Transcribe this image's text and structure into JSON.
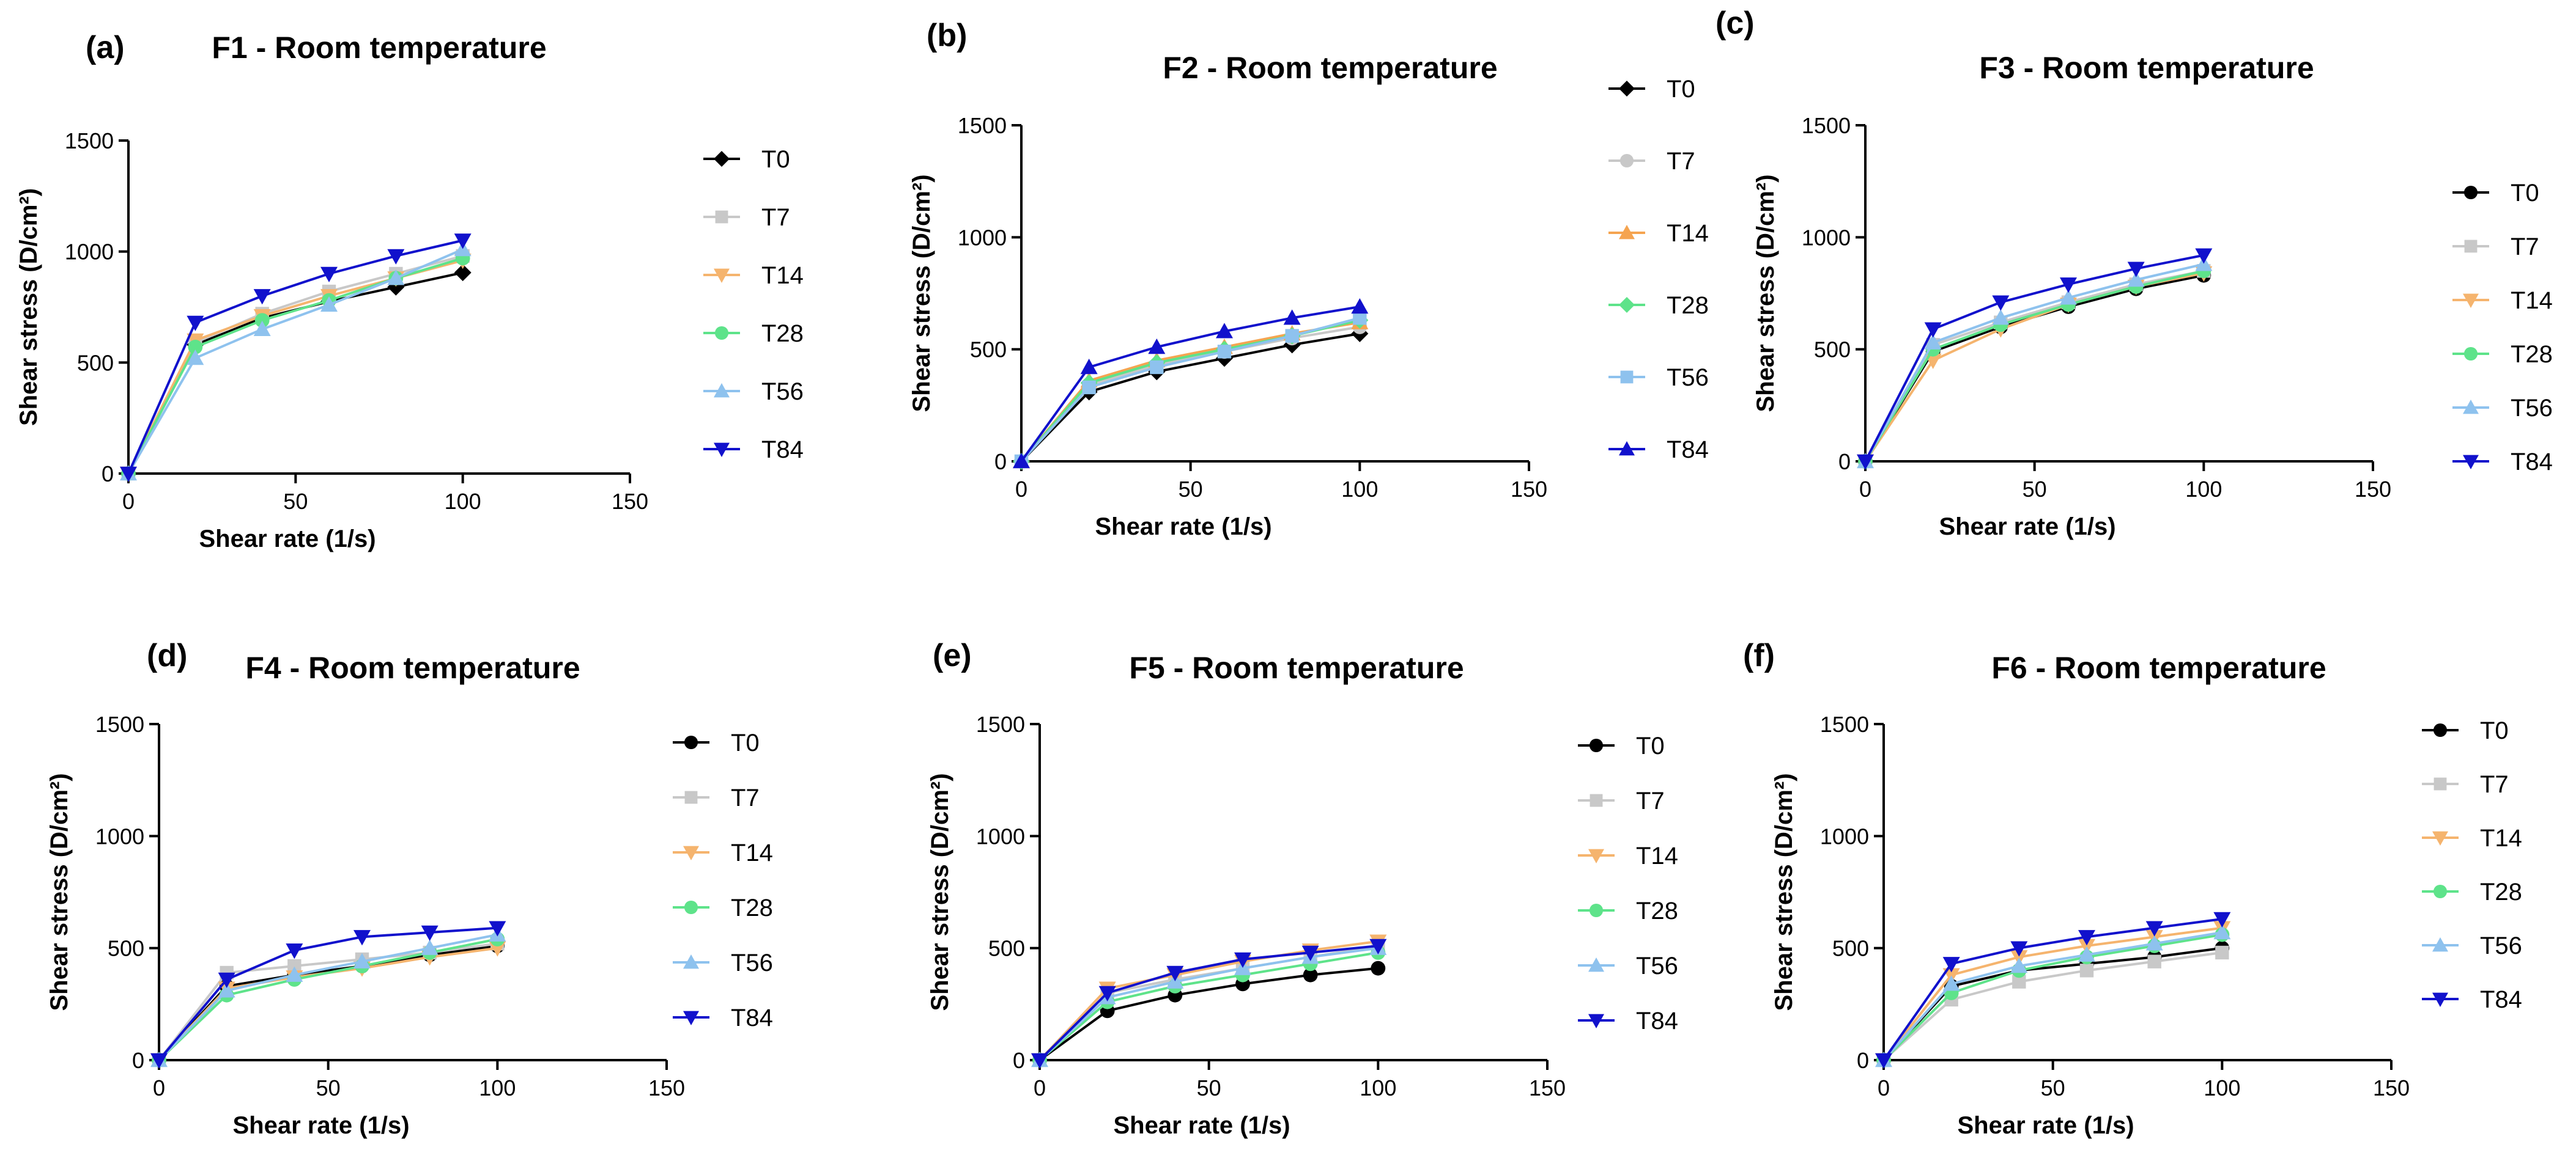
{
  "chart_data": [
    {
      "type": "line",
      "panel_label": "(a)",
      "title": "F1 -  Room temperature",
      "xlabel": "Shear rate (1/s)",
      "ylabel": "Shear stress (D/cm²)",
      "xlim": [
        0,
        150
      ],
      "ylim": [
        0,
        1500
      ],
      "xticks": [
        0,
        50,
        100,
        150
      ],
      "yticks": [
        0,
        500,
        1000,
        1500
      ],
      "x": [
        0,
        20,
        40,
        60,
        80,
        100
      ],
      "series": [
        {
          "name": "T0",
          "color": "#000000",
          "marker": "diamond",
          "values": [
            0,
            580,
            700,
            775,
            840,
            905
          ]
        },
        {
          "name": "T7",
          "color": "#c8c8c8",
          "marker": "square",
          "values": [
            0,
            590,
            720,
            820,
            900,
            980
          ]
        },
        {
          "name": "T14",
          "color": "#f5b46e",
          "marker": "tri-down",
          "values": [
            0,
            600,
            710,
            800,
            880,
            960
          ]
        },
        {
          "name": "T28",
          "color": "#5ee38a",
          "marker": "circle",
          "values": [
            0,
            570,
            690,
            780,
            880,
            970
          ]
        },
        {
          "name": "T56",
          "color": "#8ec2ee",
          "marker": "tri-up",
          "values": [
            0,
            520,
            650,
            760,
            880,
            1010
          ]
        },
        {
          "name": "T84",
          "color": "#1111cc",
          "marker": "tri-down",
          "values": [
            0,
            680,
            800,
            900,
            980,
            1050
          ]
        }
      ]
    },
    {
      "type": "line",
      "panel_label": "(b)",
      "title": "F2 - Room temperature",
      "xlabel": "Shear rate (1/s)",
      "ylabel": "Shear stress (D/cm²)",
      "xlim": [
        0,
        150
      ],
      "ylim": [
        0,
        1500
      ],
      "xticks": [
        0,
        50,
        100,
        150
      ],
      "yticks": [
        0,
        500,
        1000,
        1500
      ],
      "x": [
        0,
        20,
        40,
        60,
        80,
        100
      ],
      "series": [
        {
          "name": "T0",
          "color": "#000000",
          "marker": "diamond",
          "values": [
            0,
            310,
            400,
            460,
            520,
            570
          ]
        },
        {
          "name": "T7",
          "color": "#c8c8c8",
          "marker": "circle",
          "values": [
            0,
            340,
            430,
            490,
            550,
            600
          ]
        },
        {
          "name": "T14",
          "color": "#f5a450",
          "marker": "tri-up",
          "values": [
            0,
            360,
            450,
            510,
            570,
            620
          ]
        },
        {
          "name": "T28",
          "color": "#5ee38a",
          "marker": "diamond",
          "values": [
            0,
            350,
            440,
            500,
            560,
            630
          ]
        },
        {
          "name": "T56",
          "color": "#8ec2ee",
          "marker": "square",
          "values": [
            0,
            330,
            420,
            490,
            560,
            640
          ]
        },
        {
          "name": "T84",
          "color": "#1111cc",
          "marker": "tri-up",
          "values": [
            0,
            420,
            510,
            580,
            640,
            690
          ]
        }
      ]
    },
    {
      "type": "line",
      "panel_label": "(c)",
      "title": "F3 - Room temperature",
      "xlabel": "Shear rate (1/s)",
      "ylabel": "Shear stress (D/cm²)",
      "xlim": [
        0,
        150
      ],
      "ylim": [
        0,
        1500
      ],
      "xticks": [
        0,
        50,
        100,
        150
      ],
      "yticks": [
        0,
        500,
        1000,
        1500
      ],
      "x": [
        0,
        20,
        40,
        60,
        80,
        100
      ],
      "series": [
        {
          "name": "T0",
          "color": "#000000",
          "marker": "circle",
          "values": [
            0,
            490,
            600,
            690,
            770,
            830
          ]
        },
        {
          "name": "T7",
          "color": "#c8c8c8",
          "marker": "square",
          "values": [
            0,
            520,
            620,
            710,
            790,
            850
          ]
        },
        {
          "name": "T14",
          "color": "#f5b46e",
          "marker": "tri-down",
          "values": [
            0,
            450,
            590,
            700,
            780,
            840
          ]
        },
        {
          "name": "T28",
          "color": "#5ee38a",
          "marker": "circle",
          "values": [
            0,
            500,
            610,
            700,
            780,
            850
          ]
        },
        {
          "name": "T56",
          "color": "#8ec2ee",
          "marker": "tri-up",
          "values": [
            0,
            530,
            640,
            730,
            810,
            880
          ]
        },
        {
          "name": "T84",
          "color": "#1111cc",
          "marker": "tri-down",
          "values": [
            0,
            590,
            710,
            790,
            860,
            920
          ]
        }
      ]
    },
    {
      "type": "line",
      "panel_label": "(d)",
      "title": "F4 - Room temperature",
      "xlabel": "Shear rate (1/s)",
      "ylabel": "Shear stress (D/cm²)",
      "xlim": [
        0,
        150
      ],
      "ylim": [
        0,
        1500
      ],
      "xticks": [
        0,
        50,
        100,
        150
      ],
      "yticks": [
        0,
        500,
        1000,
        1500
      ],
      "x": [
        0,
        20,
        40,
        60,
        80,
        100
      ],
      "series": [
        {
          "name": "T0",
          "color": "#000000",
          "marker": "circle",
          "values": [
            0,
            330,
            380,
            420,
            470,
            510
          ]
        },
        {
          "name": "T7",
          "color": "#c8c8c8",
          "marker": "square",
          "values": [
            0,
            390,
            420,
            450,
            480,
            520
          ]
        },
        {
          "name": "T14",
          "color": "#f5b46e",
          "marker": "tri-down",
          "values": [
            0,
            320,
            370,
            410,
            460,
            500
          ]
        },
        {
          "name": "T28",
          "color": "#5ee38a",
          "marker": "circle",
          "values": [
            0,
            290,
            360,
            420,
            480,
            540
          ]
        },
        {
          "name": "T56",
          "color": "#8ec2ee",
          "marker": "tri-up",
          "values": [
            0,
            310,
            380,
            440,
            500,
            560
          ]
        },
        {
          "name": "T84",
          "color": "#1111cc",
          "marker": "tri-down",
          "values": [
            0,
            360,
            490,
            550,
            570,
            590
          ]
        }
      ]
    },
    {
      "type": "line",
      "panel_label": "(e)",
      "title": "F5 -  Room temperature",
      "xlabel": "Shear rate (1/s)",
      "ylabel": "Shear stress (D/cm²)",
      "xlim": [
        0,
        150
      ],
      "ylim": [
        0,
        1500
      ],
      "xticks": [
        0,
        50,
        100,
        150
      ],
      "yticks": [
        0,
        500,
        1000,
        1500
      ],
      "x": [
        0,
        20,
        40,
        60,
        80,
        100
      ],
      "series": [
        {
          "name": "T0",
          "color": "#000000",
          "marker": "circle",
          "values": [
            0,
            220,
            290,
            340,
            380,
            410
          ]
        },
        {
          "name": "T7",
          "color": "#c8c8c8",
          "marker": "square",
          "values": [
            0,
            300,
            360,
            410,
            460,
            510
          ]
        },
        {
          "name": "T14",
          "color": "#f5b46e",
          "marker": "tri-down",
          "values": [
            0,
            320,
            380,
            440,
            490,
            530
          ]
        },
        {
          "name": "T28",
          "color": "#5ee38a",
          "marker": "circle",
          "values": [
            0,
            260,
            330,
            380,
            430,
            480
          ]
        },
        {
          "name": "T56",
          "color": "#8ec2ee",
          "marker": "tri-up",
          "values": [
            0,
            280,
            350,
            410,
            460,
            500
          ]
        },
        {
          "name": "T84",
          "color": "#1111cc",
          "marker": "tri-down",
          "values": [
            0,
            300,
            390,
            450,
            480,
            510
          ]
        }
      ]
    },
    {
      "type": "line",
      "panel_label": "(f)",
      "title": "F6 - Room temperature",
      "xlabel": "Shear rate (1/s)",
      "ylabel": "Shear stress (D/cm²)",
      "xlim": [
        0,
        150
      ],
      "ylim": [
        0,
        1500
      ],
      "xticks": [
        0,
        50,
        100,
        150
      ],
      "yticks": [
        0,
        500,
        1000,
        1500
      ],
      "x": [
        0,
        20,
        40,
        60,
        80,
        100
      ],
      "series": [
        {
          "name": "T0",
          "color": "#000000",
          "marker": "circle",
          "values": [
            0,
            330,
            400,
            430,
            460,
            500
          ]
        },
        {
          "name": "T7",
          "color": "#c8c8c8",
          "marker": "square",
          "values": [
            0,
            270,
            350,
            400,
            440,
            480
          ]
        },
        {
          "name": "T14",
          "color": "#f5b46e",
          "marker": "tri-down",
          "values": [
            0,
            380,
            460,
            510,
            550,
            590
          ]
        },
        {
          "name": "T28",
          "color": "#5ee38a",
          "marker": "circle",
          "values": [
            0,
            300,
            400,
            460,
            510,
            560
          ]
        },
        {
          "name": "T56",
          "color": "#8ec2ee",
          "marker": "tri-up",
          "values": [
            0,
            340,
            420,
            470,
            520,
            570
          ]
        },
        {
          "name": "T84",
          "color": "#1111cc",
          "marker": "tri-down",
          "values": [
            0,
            430,
            500,
            550,
            590,
            630
          ]
        }
      ]
    }
  ]
}
